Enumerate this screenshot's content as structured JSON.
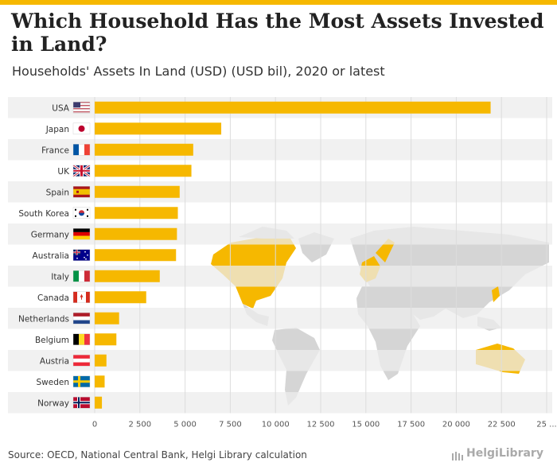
{
  "title": "Which Household Has the Most Assets Invested in Land?",
  "subtitle": "Households' Assets In Land (USD) (USD bil), 2020 or latest",
  "source": "Source: OECD, National Central Bank, Helgi Library calculation",
  "logo_text": "HelgiLibrary",
  "colors": {
    "bar": "#f6b800",
    "band": "#ececec",
    "map": "#d5d5d5"
  },
  "chart_data": {
    "type": "bar",
    "orientation": "horizontal",
    "title": "Which Household Has the Most Assets Invested in Land?",
    "subtitle": "Households' Assets In Land (USD) (USD bil), 2020 or latest",
    "categories": [
      "USA",
      "Japan",
      "France",
      "UK",
      "Spain",
      "South Korea",
      "Germany",
      "Australia",
      "Italy",
      "Canada",
      "Netherlands",
      "Belgium",
      "Austria",
      "Sweden",
      "Norway"
    ],
    "flags": [
      "us-flag-icon",
      "japan-flag-icon",
      "france-flag-icon",
      "uk-flag-icon",
      "spain-flag-icon",
      "south-korea-flag-icon",
      "germany-flag-icon",
      "australia-flag-icon",
      "italy-flag-icon",
      "canada-flag-icon",
      "netherlands-flag-icon",
      "belgium-flag-icon",
      "austria-flag-icon",
      "sweden-flag-icon",
      "norway-flag-icon"
    ],
    "values": [
      21900,
      7000,
      5450,
      5350,
      4700,
      4600,
      4550,
      4500,
      3600,
      2850,
      1350,
      1200,
      650,
      550,
      400
    ],
    "xlim": [
      0,
      25000
    ],
    "xticks": [
      "0",
      "2 500",
      "5 000",
      "7 500",
      "10 000",
      "12 500",
      "15 000",
      "17 500",
      "20 000",
      "22 500",
      "25 ..."
    ],
    "xlabel": "",
    "ylabel": "",
    "grid": true
  }
}
